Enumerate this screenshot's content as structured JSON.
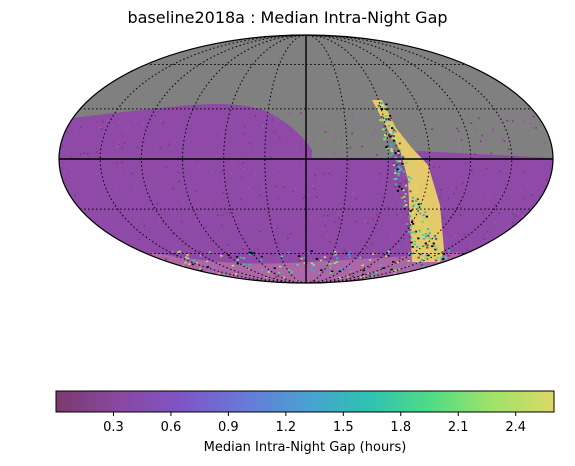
{
  "chart_data": {
    "type": "heatmap",
    "projection": "mollweide",
    "title": "baseline2018a : Median Intra-Night Gap",
    "colorbar": {
      "label": "Median Intra-Night Gap (hours)",
      "range": [
        0.0,
        2.6
      ],
      "ticks": [
        "0.3",
        "0.6",
        "0.9",
        "1.2",
        "1.5",
        "1.8",
        "2.1",
        "2.4"
      ],
      "tick_values": [
        0.3,
        0.6,
        0.9,
        1.2,
        1.5,
        1.8,
        2.1,
        2.4
      ],
      "colormap": [
        "#7a3a6f",
        "#8a47a0",
        "#7e55c4",
        "#6a78d8",
        "#4a9fd2",
        "#2fc1b4",
        "#4fdb86",
        "#9ee36a",
        "#ddd866"
      ]
    },
    "regions": [
      {
        "name": "uncovered sky",
        "color": "#808080"
      },
      {
        "name": "wide-fast-deep footprint",
        "value": 0.5,
        "color": "#8e4aa6"
      },
      {
        "name": "galactic plane / north ecliptic strip",
        "value_range": [
          0.3,
          2.5
        ]
      },
      {
        "name": "south celestial pole band",
        "value_range": [
          0.3,
          2.5
        ]
      }
    ],
    "grid": true
  }
}
